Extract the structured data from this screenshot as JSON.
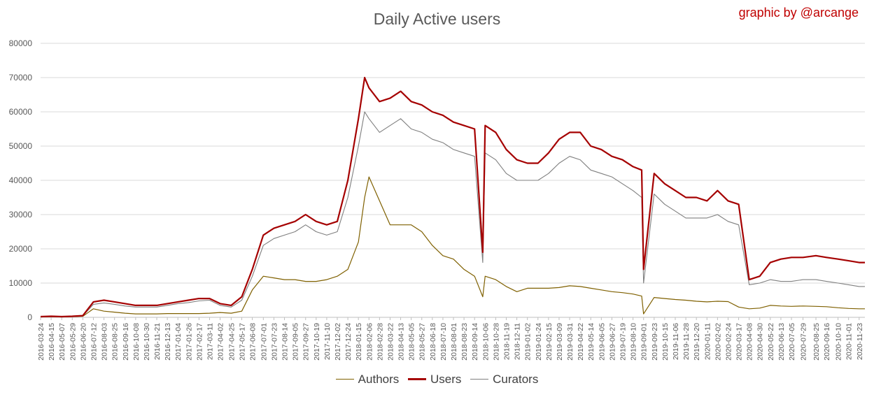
{
  "chart_data": {
    "type": "line",
    "title": "Daily Active users",
    "credit": "graphic by @arcange",
    "xlabel": "",
    "ylabel": "",
    "ylim": [
      0,
      80000
    ],
    "yticks": [
      0,
      10000,
      20000,
      30000,
      40000,
      50000,
      60000,
      70000,
      80000
    ],
    "grid": true,
    "legend_position": "bottom",
    "colors": {
      "authors": "#7f6000",
      "users": "#a50000",
      "curators": "#7f7f7f",
      "credit": "#c00000"
    },
    "x_tick_labels": [
      "2016-03-24",
      "2016-04-15",
      "2016-05-07",
      "2016-05-29",
      "2016-06-20",
      "2016-07-12",
      "2016-08-03",
      "2016-08-25",
      "2016-09-16",
      "2016-10-08",
      "2016-10-30",
      "2016-11-21",
      "2016-12-13",
      "2017-01-04",
      "2017-01-26",
      "2017-02-17",
      "2017-03-11",
      "2017-04-02",
      "2017-04-25",
      "2017-05-17",
      "2017-06-08",
      "2017-07-01",
      "2017-07-23",
      "2017-08-14",
      "2017-09-05",
      "2017-09-27",
      "2017-10-19",
      "2017-11-10",
      "2017-12-02",
      "2017-12-24",
      "2018-01-15",
      "2018-02-06",
      "2018-02-28",
      "2018-03-22",
      "2018-04-13",
      "2018-05-05",
      "2018-05-27",
      "2018-06-18",
      "2018-07-10",
      "2018-08-01",
      "2018-08-23",
      "2018-09-14",
      "2018-10-06",
      "2018-10-28",
      "2018-11-19",
      "2018-12-11",
      "2019-01-02",
      "2019-01-24",
      "2019-02-15",
      "2019-03-09",
      "2019-03-31",
      "2019-04-22",
      "2019-05-14",
      "2019-06-05",
      "2019-06-27",
      "2019-07-19",
      "2019-08-10",
      "2019-09-01",
      "2019-09-23",
      "2019-10-15",
      "2019-11-06",
      "2019-11-28",
      "2019-12-20",
      "2020-01-11",
      "2020-02-02",
      "2020-02-24",
      "2020-03-17",
      "2020-04-08",
      "2020-04-30",
      "2020-05-22",
      "2020-06-13",
      "2020-07-05",
      "2020-07-29",
      "2020-08-25",
      "2020-09-16",
      "2020-10-10",
      "2020-11-01",
      "2020-11-23"
    ],
    "series": [
      {
        "name": "Authors",
        "color": "#7f6000",
        "x": [
          "2016-03-24",
          "2016-04-15",
          "2016-05-07",
          "2016-05-29",
          "2016-06-20",
          "2016-07-12",
          "2016-08-03",
          "2016-08-25",
          "2016-09-16",
          "2016-10-08",
          "2016-10-30",
          "2016-11-21",
          "2016-12-13",
          "2017-01-04",
          "2017-01-26",
          "2017-02-17",
          "2017-03-11",
          "2017-04-02",
          "2017-04-25",
          "2017-05-17",
          "2017-06-08",
          "2017-07-01",
          "2017-07-23",
          "2017-08-14",
          "2017-09-05",
          "2017-09-27",
          "2017-10-19",
          "2017-11-10",
          "2017-12-02",
          "2017-12-24",
          "2018-01-15",
          "2018-01-28",
          "2018-02-06",
          "2018-02-28",
          "2018-03-22",
          "2018-04-13",
          "2018-05-05",
          "2018-05-27",
          "2018-06-18",
          "2018-07-10",
          "2018-08-01",
          "2018-08-23",
          "2018-09-14",
          "2018-10-01",
          "2018-10-06",
          "2018-10-28",
          "2018-11-19",
          "2018-12-11",
          "2019-01-02",
          "2019-01-24",
          "2019-02-15",
          "2019-03-09",
          "2019-03-31",
          "2019-04-22",
          "2019-05-14",
          "2019-06-05",
          "2019-06-27",
          "2019-07-19",
          "2019-08-10",
          "2019-08-28",
          "2019-09-01",
          "2019-09-23",
          "2019-10-15",
          "2019-11-06",
          "2019-11-28",
          "2019-12-20",
          "2020-01-11",
          "2020-02-02",
          "2020-02-24",
          "2020-03-17",
          "2020-04-08",
          "2020-04-30",
          "2020-05-22",
          "2020-06-13",
          "2020-07-05",
          "2020-07-29",
          "2020-08-25",
          "2020-09-16",
          "2020-10-10",
          "2020-11-01",
          "2020-11-23",
          "2020-12-05"
        ],
        "y": [
          100,
          200,
          100,
          200,
          300,
          2500,
          1800,
          1500,
          1200,
          1000,
          1000,
          1000,
          1100,
          1100,
          1100,
          1100,
          1200,
          1400,
          1200,
          1800,
          8000,
          12000,
          11500,
          11000,
          11000,
          10500,
          10500,
          11000,
          12000,
          14000,
          22000,
          35000,
          41000,
          34000,
          27000,
          27000,
          27000,
          25000,
          21000,
          18000,
          17000,
          14000,
          12000,
          6000,
          12000,
          11000,
          9000,
          7500,
          8500,
          8500,
          8500,
          8700,
          9200,
          9000,
          8500,
          8000,
          7500,
          7200,
          6800,
          6200,
          1000,
          5800,
          5500,
          5200,
          5000,
          4700,
          4500,
          4700,
          4600,
          3000,
          2500,
          2700,
          3500,
          3300,
          3200,
          3300,
          3200,
          3100,
          2800,
          2600,
          2500,
          2500
        ]
      },
      {
        "name": "Users",
        "color": "#a50000",
        "x": [
          "2016-03-24",
          "2016-04-15",
          "2016-05-07",
          "2016-05-29",
          "2016-06-20",
          "2016-07-12",
          "2016-08-03",
          "2016-08-25",
          "2016-09-16",
          "2016-10-08",
          "2016-10-30",
          "2016-11-21",
          "2016-12-13",
          "2017-01-04",
          "2017-01-26",
          "2017-02-17",
          "2017-03-11",
          "2017-04-02",
          "2017-04-25",
          "2017-05-17",
          "2017-06-08",
          "2017-07-01",
          "2017-07-23",
          "2017-08-14",
          "2017-09-05",
          "2017-09-27",
          "2017-10-19",
          "2017-11-10",
          "2017-12-02",
          "2017-12-24",
          "2018-01-15",
          "2018-01-28",
          "2018-02-06",
          "2018-02-28",
          "2018-03-22",
          "2018-04-13",
          "2018-05-05",
          "2018-05-27",
          "2018-06-18",
          "2018-07-10",
          "2018-08-01",
          "2018-08-23",
          "2018-09-14",
          "2018-10-01",
          "2018-10-06",
          "2018-10-28",
          "2018-11-19",
          "2018-12-11",
          "2019-01-02",
          "2019-01-24",
          "2019-02-15",
          "2019-03-09",
          "2019-03-31",
          "2019-04-22",
          "2019-05-14",
          "2019-06-05",
          "2019-06-27",
          "2019-07-19",
          "2019-08-10",
          "2019-08-28",
          "2019-09-01",
          "2019-09-23",
          "2019-10-15",
          "2019-11-06",
          "2019-11-28",
          "2019-12-20",
          "2020-01-11",
          "2020-02-02",
          "2020-02-24",
          "2020-03-17",
          "2020-04-08",
          "2020-04-30",
          "2020-05-22",
          "2020-06-13",
          "2020-07-05",
          "2020-07-29",
          "2020-08-25",
          "2020-09-16",
          "2020-10-10",
          "2020-11-01",
          "2020-11-23",
          "2020-12-05"
        ],
        "y": [
          200,
          300,
          200,
          300,
          500,
          4500,
          5000,
          4500,
          4000,
          3500,
          3500,
          3500,
          4000,
          4500,
          5000,
          5500,
          5500,
          4000,
          3500,
          6000,
          14000,
          24000,
          26000,
          27000,
          28000,
          30000,
          28000,
          27000,
          28000,
          40000,
          58000,
          70000,
          67000,
          63000,
          64000,
          66000,
          63000,
          62000,
          60000,
          59000,
          57000,
          56000,
          55000,
          19000,
          56000,
          54000,
          49000,
          46000,
          45000,
          45000,
          48000,
          52000,
          54000,
          54000,
          50000,
          49000,
          47000,
          46000,
          44000,
          43000,
          14000,
          42000,
          39000,
          37000,
          35000,
          35000,
          34000,
          37000,
          34000,
          33000,
          11000,
          12000,
          16000,
          17000,
          17500,
          17500,
          18000,
          17500,
          17000,
          16500,
          16000,
          16000
        ]
      },
      {
        "name": "Curators",
        "color": "#7f7f7f",
        "x": [
          "2016-03-24",
          "2016-04-15",
          "2016-05-07",
          "2016-05-29",
          "2016-06-20",
          "2016-07-12",
          "2016-08-03",
          "2016-08-25",
          "2016-09-16",
          "2016-10-08",
          "2016-10-30",
          "2016-11-21",
          "2016-12-13",
          "2017-01-04",
          "2017-01-26",
          "2017-02-17",
          "2017-03-11",
          "2017-04-02",
          "2017-04-25",
          "2017-05-17",
          "2017-06-08",
          "2017-07-01",
          "2017-07-23",
          "2017-08-14",
          "2017-09-05",
          "2017-09-27",
          "2017-10-19",
          "2017-11-10",
          "2017-12-02",
          "2017-12-24",
          "2018-01-15",
          "2018-01-28",
          "2018-02-06",
          "2018-02-28",
          "2018-03-22",
          "2018-04-13",
          "2018-05-05",
          "2018-05-27",
          "2018-06-18",
          "2018-07-10",
          "2018-08-01",
          "2018-08-23",
          "2018-09-14",
          "2018-10-01",
          "2018-10-06",
          "2018-10-28",
          "2018-11-19",
          "2018-12-11",
          "2019-01-02",
          "2019-01-24",
          "2019-02-15",
          "2019-03-09",
          "2019-03-31",
          "2019-04-22",
          "2019-05-14",
          "2019-06-05",
          "2019-06-27",
          "2019-07-19",
          "2019-08-10",
          "2019-08-28",
          "2019-09-01",
          "2019-09-23",
          "2019-10-15",
          "2019-11-06",
          "2019-11-28",
          "2019-12-20",
          "2020-01-11",
          "2020-02-02",
          "2020-02-24",
          "2020-03-17",
          "2020-04-08",
          "2020-04-30",
          "2020-05-22",
          "2020-06-13",
          "2020-07-05",
          "2020-07-29",
          "2020-08-25",
          "2020-09-16",
          "2020-10-10",
          "2020-11-01",
          "2020-11-23",
          "2020-12-05"
        ],
        "y": [
          150,
          250,
          150,
          250,
          400,
          3800,
          4200,
          3800,
          3300,
          3000,
          3000,
          3000,
          3500,
          4000,
          4300,
          4800,
          5000,
          3500,
          3000,
          5000,
          12000,
          21000,
          23000,
          24000,
          25000,
          27000,
          25000,
          24000,
          25000,
          35000,
          50000,
          60000,
          58000,
          54000,
          56000,
          58000,
          55000,
          54000,
          52000,
          51000,
          49000,
          48000,
          47000,
          16000,
          48000,
          46000,
          42000,
          40000,
          40000,
          40000,
          42000,
          45000,
          47000,
          46000,
          43000,
          42000,
          41000,
          39000,
          37000,
          35000,
          10000,
          36000,
          33000,
          31000,
          29000,
          29000,
          29000,
          30000,
          28000,
          27000,
          9500,
          10000,
          11000,
          10500,
          10500,
          11000,
          11000,
          10500,
          10000,
          9500,
          9000,
          9000
        ]
      }
    ]
  }
}
